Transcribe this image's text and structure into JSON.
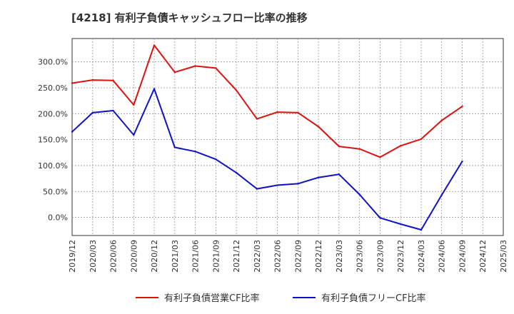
{
  "chart_data": {
    "type": "line",
    "title": "[4218]  有利子負債キャッシュフロー比率の推移",
    "xlabel": "",
    "ylabel": "",
    "ylim": [
      -35,
      345
    ],
    "yticks": [
      0,
      50,
      100,
      150,
      200,
      250,
      300
    ],
    "ytick_labels": [
      "0.0%",
      "50.0%",
      "100.0%",
      "150.0%",
      "200.0%",
      "250.0%",
      "300.0%"
    ],
    "categories": [
      "2019/12",
      "2020/03",
      "2020/06",
      "2020/09",
      "2020/12",
      "2021/03",
      "2021/06",
      "2021/09",
      "2021/12",
      "2022/03",
      "2022/06",
      "2022/09",
      "2022/12",
      "2023/03",
      "2023/06",
      "2023/09",
      "2023/12",
      "2024/03",
      "2024/06",
      "2024/09",
      "2024/12",
      "2025/03"
    ],
    "series": [
      {
        "name": "有利子負債営業CF比率",
        "color": "#dd1111",
        "values": [
          259,
          265,
          264,
          217,
          332,
          280,
          292,
          288,
          245,
          190,
          203,
          202,
          175,
          137,
          132,
          116,
          138,
          151,
          187,
          214,
          null,
          null
        ]
      },
      {
        "name": "有利子負債フリーCF比率",
        "color": "#1111cc",
        "values": [
          165,
          202,
          206,
          159,
          248,
          135,
          127,
          112,
          86,
          55,
          62,
          65,
          77,
          83,
          44,
          -1,
          -13,
          -24,
          43,
          108,
          null,
          null
        ]
      }
    ],
    "legend_position": "bottom",
    "grid": true
  }
}
